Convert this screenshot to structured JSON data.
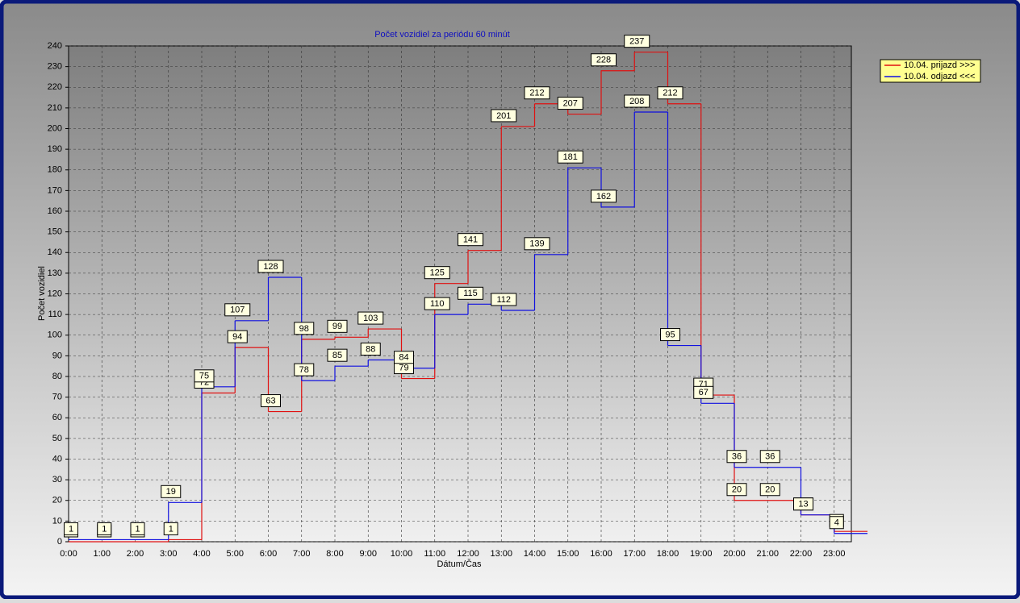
{
  "chart_data": {
    "type": "step",
    "title": "Počet vozidiel za periódu 60 minút",
    "x_label": "Dátum/Čas",
    "y_label": "Počet vozidiel",
    "categories": [
      "0:00",
      "1:00",
      "2:00",
      "3:00",
      "4:00",
      "5:00",
      "6:00",
      "7:00",
      "8:00",
      "9:00",
      "10:00",
      "11:00",
      "12:00",
      "13:00",
      "14:00",
      "15:00",
      "16:00",
      "17:00",
      "18:00",
      "19:00",
      "20:00",
      "21:00",
      "22:00",
      "23:00"
    ],
    "series": [
      {
        "name": "10.04.  prijazd >>>",
        "color": "#e01010",
        "values": [
          0,
          0,
          0,
          1,
          72,
          94,
          63,
          98,
          99,
          103,
          79,
          125,
          141,
          201,
          212,
          207,
          228,
          237,
          212,
          71,
          20,
          20,
          13,
          5
        ]
      },
      {
        "name": "10.04.  odjazd <<<",
        "color": "#1010e0",
        "values": [
          1,
          1,
          1,
          19,
          75,
          107,
          128,
          78,
          85,
          88,
          84,
          110,
          115,
          112,
          139,
          181,
          162,
          208,
          95,
          67,
          36,
          36,
          13,
          4
        ]
      }
    ],
    "ylim": [
      0,
      240
    ],
    "yticks": [
      0,
      10,
      20,
      30,
      40,
      50,
      60,
      70,
      80,
      90,
      100,
      110,
      120,
      130,
      140,
      150,
      160,
      170,
      180,
      190,
      200,
      210,
      220,
      230,
      240
    ],
    "grid": true,
    "legend": "top-right"
  }
}
